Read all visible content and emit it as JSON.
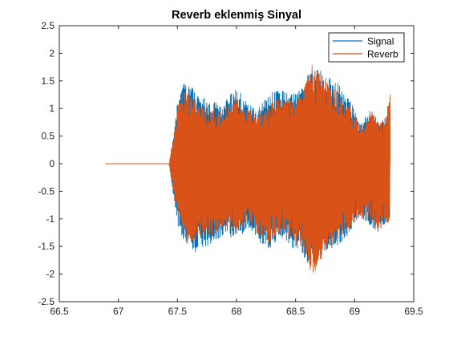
{
  "chart_data": {
    "type": "line",
    "title": "Reverb eklenmiş Sinyal",
    "xlabel": "",
    "ylabel": "",
    "xlim": [
      66.5,
      69.5
    ],
    "ylim": [
      -2.5,
      2.5
    ],
    "xticks": [
      66.5,
      67,
      67.5,
      68,
      68.5,
      69,
      69.5
    ],
    "xtick_labels": [
      "66.5",
      "67",
      "67.5",
      "68",
      "68.5",
      "69",
      "69.5"
    ],
    "yticks": [
      2.5,
      2,
      1.5,
      1,
      0.5,
      0,
      -0.5,
      -1,
      -1.5,
      -2,
      -2.5
    ],
    "ytick_labels": [
      "2.5",
      "2",
      "1.5",
      "1",
      "0.5",
      "0",
      "-0.5",
      "-1",
      "-1.5",
      "-2",
      "-2.5"
    ],
    "grid": false,
    "legend_position": "top-right",
    "signal_start": 66.89,
    "onset": 67.43,
    "signal_end": 69.3,
    "series": [
      {
        "name": "Signal",
        "color": "#0072BD",
        "envelope_x": [
          67.43,
          67.46,
          67.5,
          67.55,
          67.6,
          67.65,
          67.7,
          67.75,
          67.8,
          67.85,
          67.9,
          67.95,
          68.0,
          68.05,
          68.1,
          68.15,
          68.2,
          68.25,
          68.3,
          68.35,
          68.4,
          68.45,
          68.5,
          68.55,
          68.6,
          68.65,
          68.7,
          68.75,
          68.8,
          68.85,
          68.9,
          68.95,
          69.0,
          69.05,
          69.1,
          69.15,
          69.2,
          69.25,
          69.3
        ],
        "envelope_upper": [
          0.0,
          0.4,
          1.1,
          1.45,
          1.45,
          1.3,
          1.2,
          1.2,
          1.15,
          1.05,
          1.1,
          1.3,
          1.35,
          1.25,
          1.1,
          1.0,
          1.05,
          1.2,
          1.3,
          1.35,
          1.3,
          1.25,
          1.3,
          1.4,
          1.6,
          1.7,
          1.75,
          1.6,
          1.55,
          1.5,
          1.3,
          1.2,
          1.0,
          0.7,
          0.9,
          1.0,
          0.75,
          0.8,
          1.2
        ],
        "envelope_lower": [
          0.0,
          -0.5,
          -1.1,
          -1.4,
          -1.5,
          -1.6,
          -1.55,
          -1.5,
          -1.5,
          -1.4,
          -1.3,
          -1.35,
          -1.3,
          -1.3,
          -1.2,
          -1.25,
          -1.45,
          -1.6,
          -1.5,
          -1.35,
          -1.4,
          -1.5,
          -1.55,
          -1.6,
          -1.8,
          -1.6,
          -1.55,
          -1.6,
          -1.55,
          -1.5,
          -1.4,
          -1.3,
          -1.1,
          -1.0,
          -1.05,
          -1.2,
          -1.25,
          -1.1,
          -1.0
        ]
      },
      {
        "name": "Reverb",
        "color": "#D95319",
        "envelope_x": [
          67.43,
          67.46,
          67.5,
          67.55,
          67.6,
          67.65,
          67.7,
          67.75,
          67.8,
          67.85,
          67.9,
          67.95,
          68.0,
          68.05,
          68.1,
          68.15,
          68.2,
          68.25,
          68.3,
          68.35,
          68.4,
          68.45,
          68.5,
          68.55,
          68.6,
          68.65,
          68.7,
          68.75,
          68.8,
          68.85,
          68.9,
          68.95,
          69.0,
          69.05,
          69.1,
          69.15,
          69.2,
          69.25,
          69.3
        ],
        "envelope_upper": [
          0.0,
          0.45,
          1.0,
          1.35,
          1.3,
          1.15,
          1.05,
          1.0,
          1.0,
          0.95,
          1.0,
          1.15,
          1.2,
          1.1,
          1.0,
          0.95,
          0.95,
          1.05,
          1.15,
          1.2,
          1.15,
          1.15,
          1.2,
          1.35,
          1.55,
          1.85,
          1.7,
          1.5,
          1.4,
          1.35,
          1.2,
          1.1,
          0.95,
          0.7,
          0.8,
          0.95,
          0.75,
          0.8,
          1.25
        ],
        "envelope_lower": [
          0.0,
          -0.45,
          -1.0,
          -1.3,
          -1.55,
          -1.45,
          -1.35,
          -1.3,
          -1.35,
          -1.25,
          -1.15,
          -1.2,
          -1.2,
          -1.2,
          -1.1,
          -1.2,
          -1.35,
          -1.45,
          -1.4,
          -1.25,
          -1.3,
          -1.4,
          -1.5,
          -1.55,
          -1.75,
          -2.1,
          -1.8,
          -1.6,
          -1.5,
          -1.45,
          -1.3,
          -1.2,
          -1.05,
          -0.95,
          -1.0,
          -1.1,
          -1.2,
          -1.1,
          -1.05
        ]
      }
    ]
  }
}
